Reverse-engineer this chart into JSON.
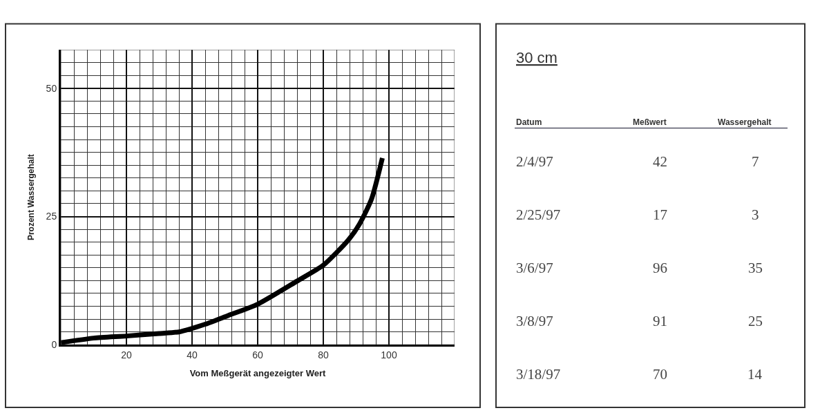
{
  "chart_data": [
    {
      "type": "line",
      "xlabel": "Vom Meßgerät angezeigter Wert",
      "ylabel": "Prozent Wassergehalt",
      "x": [
        0,
        10,
        20,
        30,
        36,
        44,
        51,
        60,
        72,
        80,
        87.6,
        91,
        94.7,
        98
      ],
      "series": [
        {
          "color": "#000000",
          "values": [
            0.4,
            1.3,
            1.7,
            2.2,
            2.5,
            4.0,
            5.7,
            7.9,
            12.4,
            15.5,
            20.4,
            23.5,
            28.4,
            36.4
          ]
        }
      ],
      "xlim": [
        0,
        120
      ],
      "xticks": [
        20,
        40,
        60,
        80,
        100
      ],
      "ylim": [
        0,
        57.5
      ],
      "yticks": [
        0,
        25,
        50
      ],
      "grid": true,
      "marker": "none",
      "line_style": "solid"
    },
    {
      "type": "other",
      "title": "30 cm",
      "categories": [
        "Datum",
        "Meßwert",
        "Wassergehalt"
      ],
      "annotations": [
        "2/4/97",
        "42",
        "7",
        "2/25/97",
        "17",
        "3",
        "3/6/97",
        "96",
        "35",
        "3/8/97",
        "91",
        "25",
        "3/18/97",
        "70",
        "14"
      ]
    }
  ]
}
